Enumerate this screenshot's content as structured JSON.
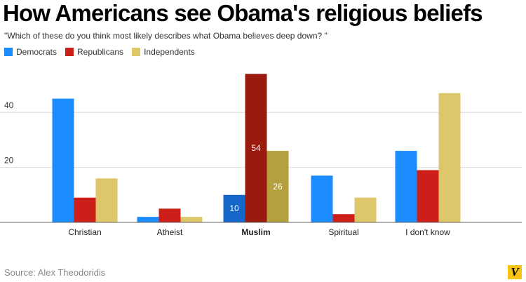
{
  "chart_data": {
    "type": "bar",
    "title": "How Americans see Obama's religious beliefs",
    "subtitle": "\"Which of these do you think most likely describes what Obama believes deep down? \"",
    "categories": [
      "Christian",
      "Atheist",
      "Muslim",
      "Spiritual",
      "I don't know"
    ],
    "highlighted_category": "Muslim",
    "series": [
      {
        "name": "Democrats",
        "color": "#1a8cff",
        "highlight_color": "#1466c9",
        "values": [
          45,
          2,
          10,
          17,
          26
        ]
      },
      {
        "name": "Republicans",
        "color": "#cc1f1a",
        "highlight_color": "#9a1a10",
        "values": [
          9,
          5,
          54,
          3,
          19
        ]
      },
      {
        "name": "Independents",
        "color": "#dec66a",
        "highlight_color": "#b5a040",
        "values": [
          16,
          2,
          26,
          9,
          47
        ]
      }
    ],
    "data_labels": [
      {
        "category": "Muslim",
        "series": "Democrats",
        "text": "10"
      },
      {
        "category": "Muslim",
        "series": "Republicans",
        "text": "54"
      },
      {
        "category": "Muslim",
        "series": "Independents",
        "text": "26"
      }
    ],
    "yticks": [
      20,
      40
    ],
    "ylim": [
      0,
      56
    ],
    "grid": true,
    "legend_position": "top-left"
  },
  "source": "Source: Alex Theodoridis",
  "logo_text": "V"
}
